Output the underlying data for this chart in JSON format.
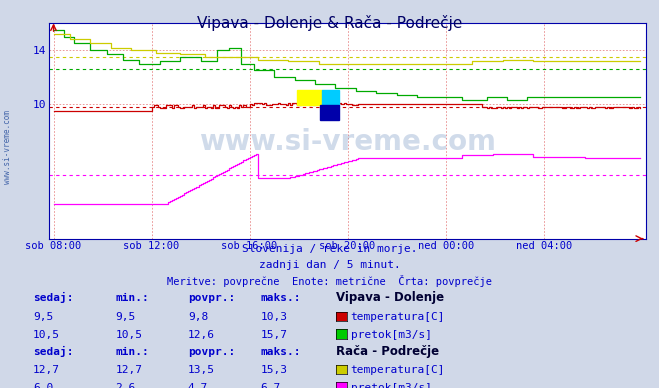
{
  "title": "Vipava - Dolenje & Rača - Podrečje",
  "subtitle1": "Slovenija / reke in morje.",
  "subtitle2": "zadnji dan / 5 minut.",
  "subtitle3": "Meritve: povprečne  Enote: metrične  Črta: povprečje",
  "bg_color": "#d0d8e8",
  "plot_bg_color": "#ffffff",
  "text_color": "#0000cc",
  "title_color": "#000066",
  "xtick_labels": [
    "sob 08:00",
    "sob 12:00",
    "sob 16:00",
    "sob 20:00",
    "ned 00:00",
    "ned 04:00"
  ],
  "xtick_positions": [
    0,
    48,
    96,
    144,
    192,
    240
  ],
  "ylim": [
    0,
    16
  ],
  "ytick_labels": [
    "10",
    "14"
  ],
  "ytick_values": [
    10,
    14
  ],
  "total_points": 288,
  "vipava_temp_color": "#cc0000",
  "vipava_flow_color": "#00aa00",
  "raca_temp_color": "#cccc00",
  "raca_flow_color": "#ff00ff",
  "avg_vipava_temp": 9.8,
  "avg_vipava_flow": 12.6,
  "avg_raca_temp": 13.5,
  "avg_raca_flow": 4.7,
  "watermark_text": "www.si-vreme.com",
  "watermark_color": "#6688bb",
  "watermark_alpha": 0.3,
  "sidebar_text": "www.si-vreme.com",
  "sidebar_color": "#4466aa",
  "legend_title1": "Vipava - Dolenje",
  "legend_title2": "Rača - Podrečje",
  "stats": [
    {
      "sedaj": "9,5",
      "min": "9,5",
      "povpr": "9,8",
      "maks": "10,3",
      "label": "temperatura[C]",
      "color": "#cc0000"
    },
    {
      "sedaj": "10,5",
      "min": "10,5",
      "povpr": "12,6",
      "maks": "15,7",
      "label": "pretok[m3/s]",
      "color": "#00cc00"
    },
    {
      "sedaj": "12,7",
      "min": "12,7",
      "povpr": "13,5",
      "maks": "15,3",
      "label": "temperatura[C]",
      "color": "#cccc00"
    },
    {
      "sedaj": "6,0",
      "min": "2,6",
      "povpr": "4,7",
      "maks": "6,7",
      "label": "pretok[m3/s]",
      "color": "#ff00ff"
    }
  ]
}
